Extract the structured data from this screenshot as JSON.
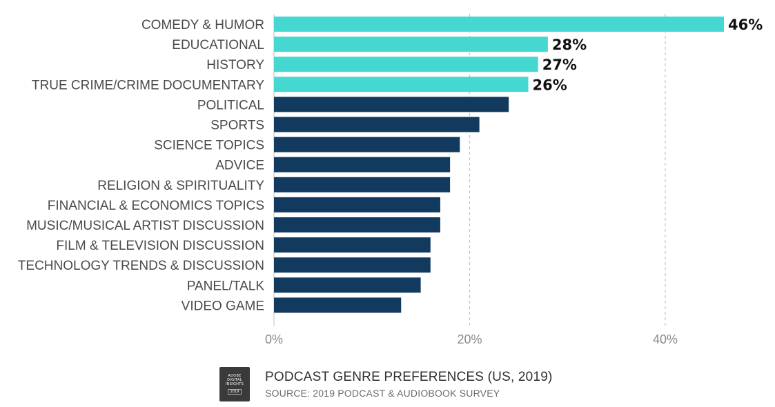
{
  "chart_data": {
    "type": "bar",
    "orientation": "horizontal",
    "categories": [
      "COMEDY & HUMOR",
      "EDUCATIONAL",
      "HISTORY",
      "TRUE CRIME/CRIME DOCUMENTARY",
      "POLITICAL",
      "SPORTS",
      "SCIENCE TOPICS",
      "ADVICE",
      "RELIGION & SPIRITUALITY",
      "FINANCIAL & ECONOMICS TOPICS",
      "MUSIC/MUSICAL ARTIST DISCUSSION",
      "FILM & TELEVISION DISCUSSION",
      "TECHNOLOGY TRENDS & DISCUSSION",
      "PANEL/TALK",
      "VIDEO GAME"
    ],
    "values": [
      46,
      28,
      27,
      26,
      24,
      21,
      19,
      18,
      18,
      17,
      17,
      16,
      16,
      15,
      13
    ],
    "data_labels": [
      "46%",
      "28%",
      "27%",
      "26%",
      "",
      "",
      "",
      "",
      "",
      "",
      "",
      "",
      "",
      "",
      ""
    ],
    "highlight_count": 4,
    "colors": {
      "highlight": "#45d8d0",
      "default": "#123a5e"
    },
    "xlim": [
      0,
      46
    ],
    "xticks": [
      0,
      20,
      40
    ],
    "xtick_labels": [
      "0%",
      "20%",
      "40%"
    ],
    "grid": "vertical dashed at 20% and 40%"
  },
  "footer": {
    "logo_lines": [
      "ADOBE",
      "DIGITAL",
      "INSIGHTS"
    ],
    "logo_year": "2019",
    "title": "PODCAST GENRE PREFERENCES (US, 2019)",
    "source": "SOURCE: 2019 PODCAST & AUDIOBOOK SURVEY"
  }
}
